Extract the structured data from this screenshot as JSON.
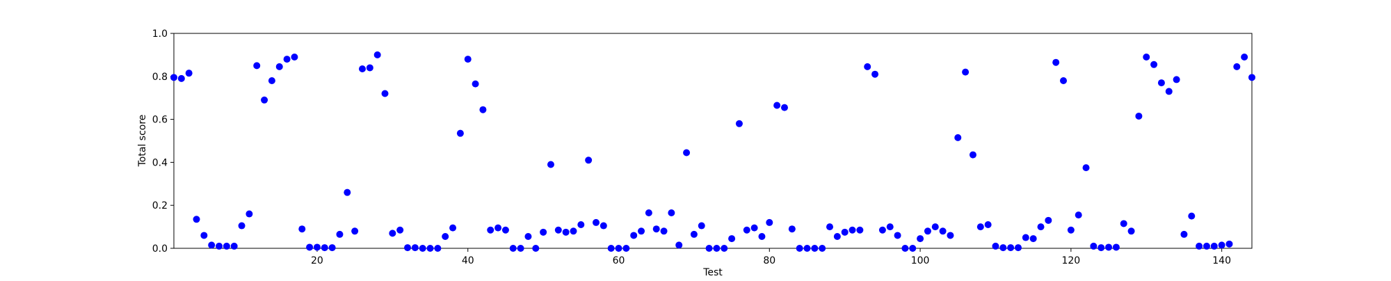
{
  "chart_data": {
    "type": "scatter",
    "title": "",
    "xlabel": "Test",
    "ylabel": "Total score",
    "xlim": [
      1,
      144
    ],
    "ylim": [
      0,
      1.0
    ],
    "xticks": [
      20,
      40,
      60,
      80,
      100,
      120,
      140
    ],
    "yticks": [
      0.0,
      0.2,
      0.4,
      0.6,
      0.8,
      1.0
    ],
    "xtick_labels": [
      "20",
      "40",
      "60",
      "80",
      "100",
      "120",
      "140"
    ],
    "ytick_labels": [
      "0.0",
      "0.2",
      "0.4",
      "0.6",
      "0.8",
      "1.0"
    ],
    "grid": false,
    "legend": "none",
    "marker_color": "#0000ff",
    "x": [
      1,
      2,
      3,
      4,
      5,
      6,
      7,
      8,
      9,
      10,
      11,
      12,
      13,
      14,
      15,
      16,
      17,
      18,
      19,
      20,
      21,
      22,
      23,
      24,
      25,
      26,
      27,
      28,
      29,
      30,
      31,
      32,
      33,
      34,
      35,
      36,
      37,
      38,
      39,
      40,
      41,
      42,
      43,
      44,
      45,
      46,
      47,
      48,
      49,
      50,
      51,
      52,
      53,
      54,
      55,
      56,
      57,
      58,
      59,
      60,
      61,
      62,
      63,
      64,
      65,
      66,
      67,
      68,
      69,
      70,
      71,
      72,
      73,
      74,
      75,
      76,
      77,
      78,
      79,
      80,
      81,
      82,
      83,
      84,
      85,
      86,
      87,
      88,
      89,
      90,
      91,
      92,
      93,
      94,
      95,
      96,
      97,
      98,
      99,
      100,
      101,
      102,
      103,
      104,
      105,
      106,
      107,
      108,
      109,
      110,
      111,
      112,
      113,
      114,
      115,
      116,
      117,
      118,
      119,
      120,
      121,
      122,
      123,
      124,
      125,
      126,
      127,
      128,
      129,
      130,
      131,
      132,
      133,
      134,
      135,
      136,
      137,
      138,
      139,
      140,
      141,
      142,
      143,
      144
    ],
    "y": [
      0.795,
      0.79,
      0.815,
      0.135,
      0.06,
      0.015,
      0.01,
      0.01,
      0.01,
      0.105,
      0.16,
      0.85,
      0.69,
      0.78,
      0.845,
      0.88,
      0.89,
      0.09,
      0.005,
      0.005,
      0.003,
      0.003,
      0.065,
      0.26,
      0.08,
      0.835,
      0.84,
      0.9,
      0.72,
      0.07,
      0.085,
      0.003,
      0.003,
      0.0,
      0.0,
      0.0,
      0.055,
      0.095,
      0.535,
      0.88,
      0.765,
      0.645,
      0.085,
      0.095,
      0.085,
      0.0,
      0.0,
      0.055,
      0.0,
      0.075,
      0.39,
      0.085,
      0.075,
      0.08,
      0.11,
      0.41,
      0.12,
      0.105,
      0.0,
      0.0,
      0.0,
      0.06,
      0.08,
      0.165,
      0.09,
      0.08,
      0.165,
      0.015,
      0.445,
      0.065,
      0.105,
      0.0,
      0.0,
      0.0,
      0.045,
      0.58,
      0.085,
      0.095,
      0.055,
      0.12,
      0.665,
      0.655,
      0.09,
      0.0,
      0.0,
      0.0,
      0.0,
      0.1,
      0.055,
      0.075,
      0.085,
      0.085,
      0.845,
      0.81,
      0.085,
      0.1,
      0.06,
      0.0,
      0.0,
      0.045,
      0.08,
      0.1,
      0.08,
      0.06,
      0.515,
      0.82,
      0.435,
      0.1,
      0.11,
      0.01,
      0.003,
      0.003,
      0.003,
      0.05,
      0.045,
      0.1,
      0.13,
      0.865,
      0.78,
      0.085,
      0.155,
      0.375,
      0.01,
      0.003,
      0.005,
      0.005,
      0.115,
      0.08,
      0.615,
      0.89,
      0.855,
      0.77,
      0.73,
      0.785,
      0.065,
      0.15,
      0.01,
      0.01,
      0.01,
      0.015,
      0.02,
      0.845,
      0.89,
      0.795
    ]
  }
}
